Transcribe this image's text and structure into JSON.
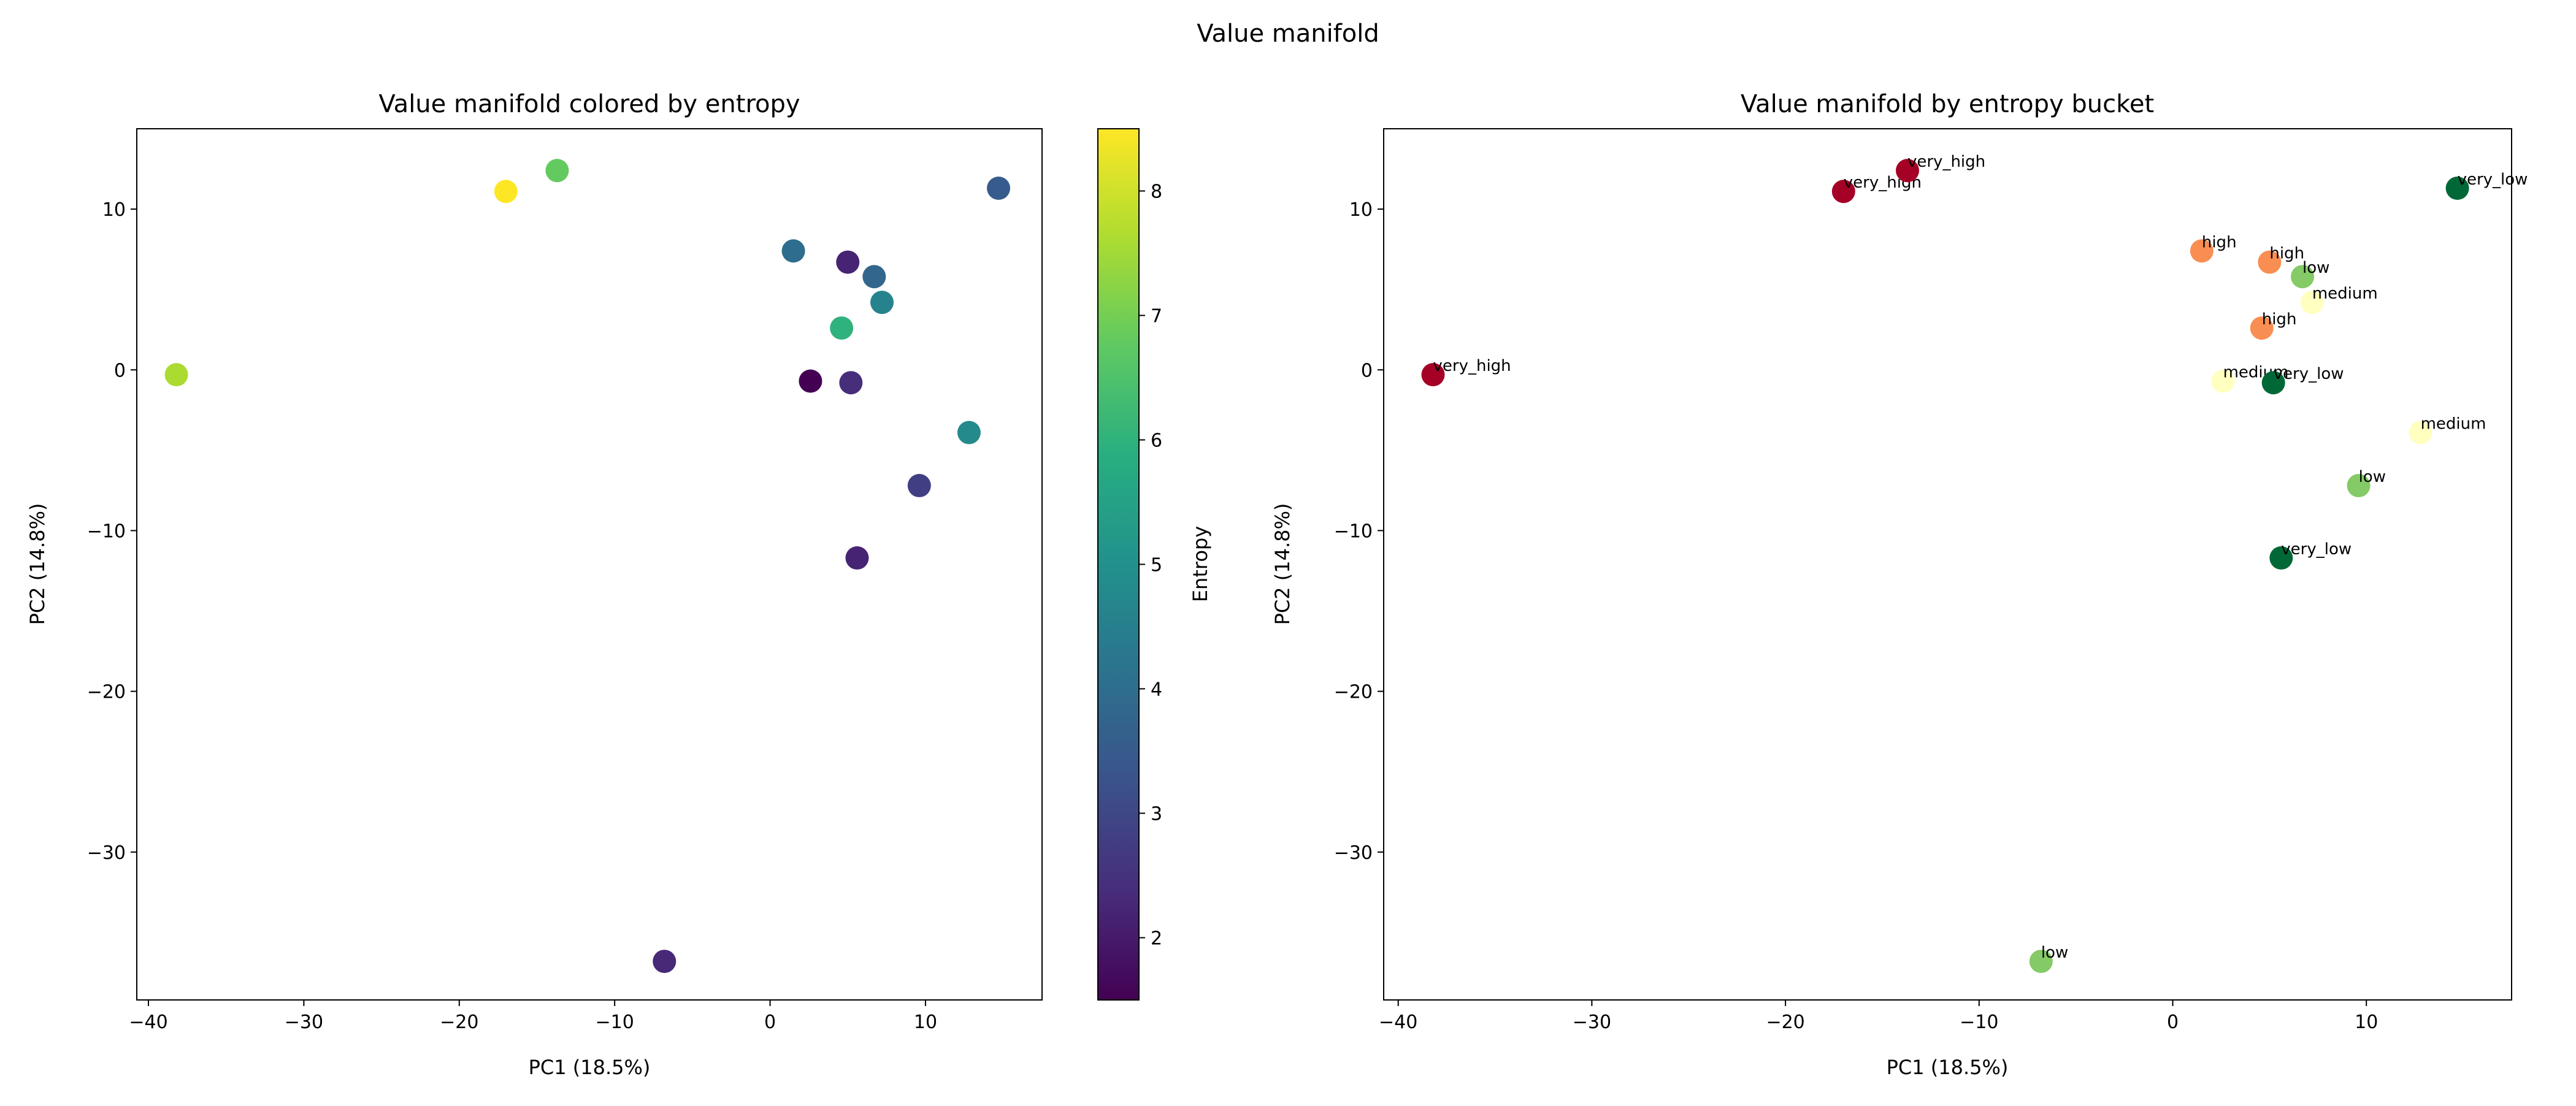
{
  "suptitle": "Value manifold",
  "chart_data": [
    {
      "type": "scatter",
      "title": "Value manifold colored by entropy",
      "xlabel": "PC1 (18.5%)",
      "ylabel": "PC2 (14.8%)",
      "xlim": [
        -40.75,
        17.5
      ],
      "ylim": [
        -39.2,
        15.0
      ],
      "xticks": [
        -40,
        -30,
        -20,
        -10,
        0,
        10
      ],
      "yticks": [
        -30,
        -20,
        -10,
        0,
        10
      ],
      "grid": false,
      "colormap": "viridis",
      "colorbar": {
        "label": "Entropy",
        "range": [
          1.5,
          8.5
        ],
        "ticks": [
          2,
          3,
          4,
          5,
          6,
          7,
          8
        ]
      },
      "points": [
        {
          "x": -38.2,
          "y": -0.3,
          "entropy": 7.6
        },
        {
          "x": -17.0,
          "y": 11.1,
          "entropy": 8.5
        },
        {
          "x": -13.7,
          "y": 12.4,
          "entropy": 6.8
        },
        {
          "x": 1.5,
          "y": 7.4,
          "entropy": 4.0
        },
        {
          "x": 5.0,
          "y": 6.7,
          "entropy": 2.2
        },
        {
          "x": 6.7,
          "y": 5.8,
          "entropy": 3.8
        },
        {
          "x": 7.2,
          "y": 4.2,
          "entropy": 4.6
        },
        {
          "x": 4.6,
          "y": 2.6,
          "entropy": 6.0
        },
        {
          "x": 2.6,
          "y": -0.7,
          "entropy": 1.5
        },
        {
          "x": 5.2,
          "y": -0.8,
          "entropy": 2.4
        },
        {
          "x": 12.8,
          "y": -3.9,
          "entropy": 4.8
        },
        {
          "x": 9.6,
          "y": -7.2,
          "entropy": 2.8
        },
        {
          "x": 5.6,
          "y": -11.7,
          "entropy": 2.2
        },
        {
          "x": -6.8,
          "y": -36.8,
          "entropy": 2.3
        },
        {
          "x": 14.7,
          "y": 11.3,
          "entropy": 3.5
        }
      ]
    },
    {
      "type": "scatter",
      "title": "Value manifold by entropy bucket",
      "xlabel": "PC1 (18.5%)",
      "ylabel": "PC2 (14.8%)",
      "xlim": [
        -40.75,
        17.5
      ],
      "ylim": [
        -39.2,
        15.0
      ],
      "xticks": [
        -40,
        -30,
        -20,
        -10,
        0,
        10
      ],
      "yticks": [
        -30,
        -20,
        -10,
        0,
        10
      ],
      "grid": false,
      "bucket_colors": {
        "very_high": "#a50026",
        "high": "#f98e52",
        "medium": "#ffffbf",
        "low": "#84ca66",
        "very_low": "#006837"
      },
      "points": [
        {
          "x": -38.2,
          "y": -0.3,
          "label": "very_high"
        },
        {
          "x": -17.0,
          "y": 11.1,
          "label": "very_high"
        },
        {
          "x": -13.7,
          "y": 12.4,
          "label": "very_high"
        },
        {
          "x": 1.5,
          "y": 7.4,
          "label": "high"
        },
        {
          "x": 5.0,
          "y": 6.7,
          "label": "high"
        },
        {
          "x": 6.7,
          "y": 5.8,
          "label": "low"
        },
        {
          "x": 7.2,
          "y": 4.2,
          "label": "medium"
        },
        {
          "x": 4.6,
          "y": 2.6,
          "label": "high"
        },
        {
          "x": 2.6,
          "y": -0.7,
          "label": "medium"
        },
        {
          "x": 5.2,
          "y": -0.8,
          "label": "very_low"
        },
        {
          "x": 12.8,
          "y": -3.9,
          "label": "medium"
        },
        {
          "x": 9.6,
          "y": -7.2,
          "label": "low"
        },
        {
          "x": 5.6,
          "y": -11.7,
          "label": "very_low"
        },
        {
          "x": -6.8,
          "y": -36.8,
          "label": "low"
        },
        {
          "x": 14.7,
          "y": 11.3,
          "label": "very_low"
        }
      ]
    }
  ]
}
